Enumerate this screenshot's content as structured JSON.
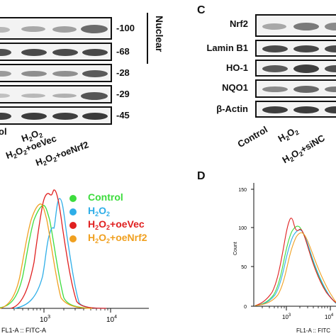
{
  "panels": {
    "c_letter": "C",
    "d_letter": "D"
  },
  "left_blot": {
    "markers": [
      "-100",
      "-68",
      "-28",
      "-29",
      "-45"
    ],
    "nuclear_label": "Nuclear",
    "lane_labels": [
      {
        "main": "ol",
        "parts": [
          "ol"
        ]
      },
      {
        "parts": [
          "H",
          "2",
          "O",
          "2",
          ""
        ]
      },
      {
        "parts": [
          "H",
          "2",
          "O",
          "2",
          "+oeVec"
        ]
      },
      {
        "parts": [
          "H",
          "2",
          "O",
          "2",
          "+oeNrf2"
        ]
      }
    ]
  },
  "panel_c": {
    "proteins": [
      "Nrf2",
      "Lamin B1",
      "HO-1",
      "NQO1",
      "β-Actin"
    ],
    "lane_labels": [
      {
        "parts": [
          "Control"
        ]
      },
      {
        "parts": [
          "H",
          "2",
          "O",
          "2",
          ""
        ]
      },
      {
        "parts": [
          "H",
          "2",
          "O",
          "2",
          "+siNC"
        ]
      }
    ]
  },
  "legend": {
    "items": [
      {
        "color": "#3ddc3d",
        "parts": [
          "Control"
        ]
      },
      {
        "color": "#2eaee8",
        "parts": [
          "H",
          "2",
          "O",
          "2",
          ""
        ]
      },
      {
        "color": "#e02020",
        "parts": [
          "H",
          "2",
          "O",
          "2",
          "+oeVec"
        ]
      },
      {
        "color": "#f0a020",
        "parts": [
          "H",
          "2",
          "O",
          "2",
          "+oeNrf2"
        ]
      }
    ]
  },
  "flow_left": {
    "xlabel": "FL1-A :: FITC-A",
    "ticks": [
      {
        "base": "10",
        "exp": "3"
      },
      {
        "base": "10",
        "exp": "4"
      }
    ]
  },
  "flow_right": {
    "xlabel": "FL1-A :: FITC",
    "ylabel": "Count",
    "yticks": [
      "0",
      "50",
      "100",
      "150"
    ],
    "ticks": [
      {
        "base": "10",
        "exp": "3"
      },
      {
        "base": "10",
        "exp": "4"
      }
    ]
  },
  "colors": {
    "control": "#3ddc3d",
    "h2o2": "#2eaee8",
    "oevec": "#e02020",
    "oenrf2": "#f0a020"
  }
}
